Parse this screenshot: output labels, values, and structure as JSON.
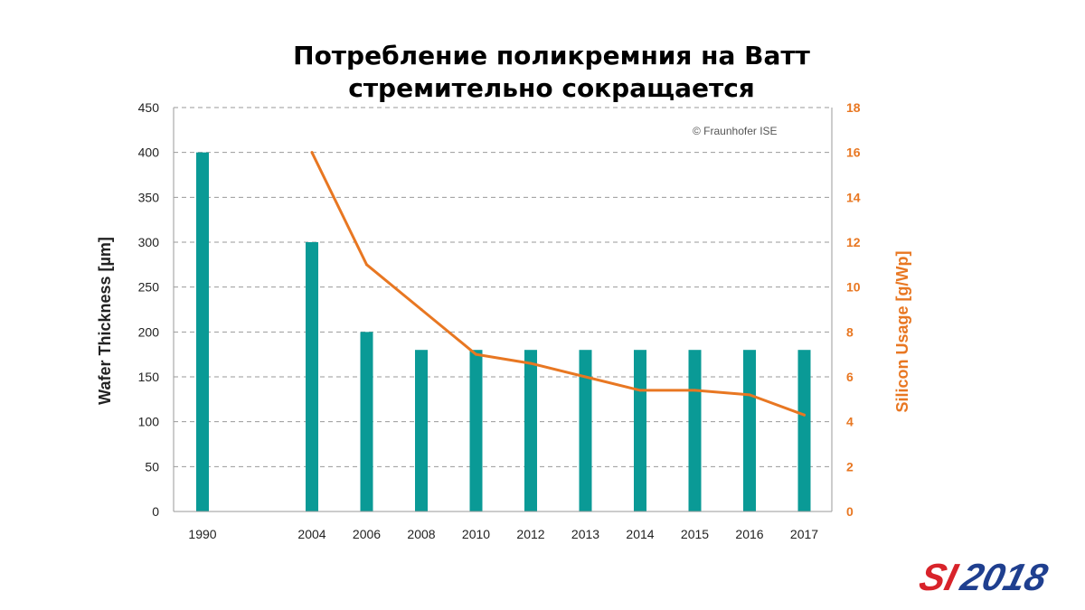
{
  "slide": {
    "title_line1": "Потребление поликремния на Ватт",
    "title_line2": "стремительно сокращается",
    "logo_text": "SI2018"
  },
  "chart_data": {
    "type": "bar",
    "categories": [
      "1990",
      "2004",
      "2006",
      "2008",
      "2010",
      "2012",
      "2013",
      "2014",
      "2015",
      "2016",
      "2017"
    ],
    "category_gaps_before": [
      0,
      1,
      0,
      0,
      0,
      0,
      0,
      0,
      0,
      0,
      0
    ],
    "series": [
      {
        "name": "Wafer Thickness",
        "type": "bar",
        "axis": "left",
        "color": "#0a9a96",
        "values": [
          400,
          300,
          200,
          180,
          180,
          180,
          180,
          180,
          180,
          180,
          180
        ]
      },
      {
        "name": "Silicon Usage",
        "type": "line",
        "axis": "right",
        "color": "#e87722",
        "values": [
          null,
          16,
          11,
          9,
          7,
          6.6,
          6,
          5.4,
          5.4,
          5.2,
          4.3
        ]
      }
    ],
    "ylabel": "Wafer Thickness [µm]",
    "y2label": "Silicon Usage [g/Wp]",
    "ylim": [
      0,
      450
    ],
    "y2lim": [
      0,
      18
    ],
    "yticks": [
      0,
      50,
      100,
      150,
      200,
      250,
      300,
      350,
      400,
      450
    ],
    "y2ticks": [
      0,
      2,
      4,
      6,
      8,
      10,
      12,
      14,
      16,
      18
    ],
    "grid": true,
    "annotation": "© Fraunhofer ISE"
  }
}
